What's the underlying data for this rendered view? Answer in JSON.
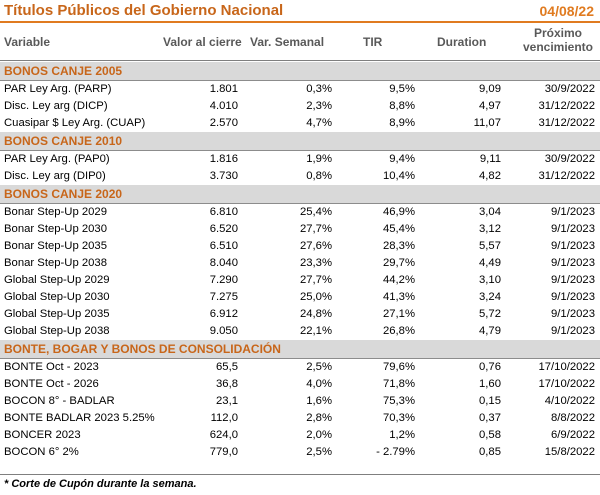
{
  "header": {
    "title": "Títulos Públicos del Gobierno Nacional",
    "date": "04/08/22"
  },
  "columns": {
    "variable": "Variable",
    "valor": "Valor al cierre",
    "semanal": "Var. Semanal",
    "tir": "TIR",
    "duration": "Duration",
    "proximo": "Próximo",
    "vencimiento": "vencimiento"
  },
  "sections": [
    {
      "title": "BONOS CANJE 2005",
      "rows": [
        {
          "name": "PAR Ley Arg. (PARP)",
          "valor": "1.801",
          "semanal": "0,3%",
          "tir": "9,5%",
          "duration": "9,09",
          "venc": "30/9/2022"
        },
        {
          "name": "Disc. Ley arg (DICP)",
          "valor": "4.010",
          "semanal": "2,3%",
          "tir": "8,8%",
          "duration": "4,97",
          "venc": "31/12/2022"
        },
        {
          "name": "Cuasipar $ Ley Arg. (CUAP)",
          "valor": "2.570",
          "semanal": "4,7%",
          "tir": "8,9%",
          "duration": "11,07",
          "venc": "31/12/2022"
        }
      ]
    },
    {
      "title": "BONOS CANJE 2010",
      "rows": [
        {
          "name": "PAR Ley Arg. (PAP0)",
          "valor": "1.816",
          "semanal": "1,9%",
          "tir": "9,4%",
          "duration": "9,11",
          "venc": "30/9/2022"
        },
        {
          "name": "Disc. Ley arg (DIP0)",
          "valor": "3.730",
          "semanal": "0,8%",
          "tir": "10,4%",
          "duration": "4,82",
          "venc": "31/12/2022"
        }
      ]
    },
    {
      "title": "BONOS CANJE 2020",
      "rows": [
        {
          "name": "Bonar Step-Up 2029",
          "valor": "6.810",
          "semanal": "25,4%",
          "tir": "46,9%",
          "duration": "3,04",
          "venc": "9/1/2023"
        },
        {
          "name": "Bonar Step-Up 2030",
          "valor": "6.520",
          "semanal": "27,7%",
          "tir": "45,4%",
          "duration": "3,12",
          "venc": "9/1/2023"
        },
        {
          "name": "Bonar Step-Up 2035",
          "valor": "6.510",
          "semanal": "27,6%",
          "tir": "28,3%",
          "duration": "5,57",
          "venc": "9/1/2023"
        },
        {
          "name": "Bonar Step-Up 2038",
          "valor": "8.040",
          "semanal": "23,3%",
          "tir": "29,7%",
          "duration": "4,49",
          "venc": "9/1/2023"
        },
        {
          "name": "Global Step-Up 2029",
          "valor": "7.290",
          "semanal": "27,7%",
          "tir": "44,2%",
          "duration": "3,10",
          "venc": "9/1/2023"
        },
        {
          "name": "Global Step-Up 2030",
          "valor": "7.275",
          "semanal": "25,0%",
          "tir": "41,3%",
          "duration": "3,24",
          "venc": "9/1/2023"
        },
        {
          "name": "Global Step-Up 2035",
          "valor": "6.912",
          "semanal": "24,8%",
          "tir": "27,1%",
          "duration": "5,72",
          "venc": "9/1/2023"
        },
        {
          "name": "Global Step-Up 2038",
          "valor": "9.050",
          "semanal": "22,1%",
          "tir": "26,8%",
          "duration": "4,79",
          "venc": "9/1/2023"
        }
      ]
    },
    {
      "title": "BONTE, BOGAR Y BONOS DE CONSOLIDACIÓN",
      "rows": [
        {
          "name": "BONTE Oct - 2023",
          "valor": "65,5",
          "semanal": "2,5%",
          "tir": "79,6%",
          "duration": "0,76",
          "venc": "17/10/2022"
        },
        {
          "name": "BONTE Oct - 2026",
          "valor": "36,8",
          "semanal": "4,0%",
          "tir": "71,8%",
          "duration": "1,60",
          "venc": "17/10/2022"
        },
        {
          "name": "BOCON 8° - BADLAR",
          "valor": "23,1",
          "semanal": "1,6%",
          "tir": "75,3%",
          "duration": "0,15",
          "venc": "4/10/2022"
        },
        {
          "name": "BONTE BADLAR 2023 5.25%",
          "valor": "112,0",
          "semanal": "2,8%",
          "tir": "70,3%",
          "duration": "0,37",
          "venc": "8/8/2022"
        },
        {
          "name": "BONCER 2023",
          "valor": "624,0",
          "semanal": "2,0%",
          "tir": "1,2%",
          "duration": "0,58",
          "venc": "6/9/2022"
        },
        {
          "name": "BOCON 6° 2%",
          "valor": "779,0",
          "semanal": "2,5%",
          "tir": "-  2.79%",
          "duration": "0,85",
          "venc": "15/8/2022"
        }
      ]
    }
  ],
  "footnote": "* Corte de Cupón durante la semana."
}
